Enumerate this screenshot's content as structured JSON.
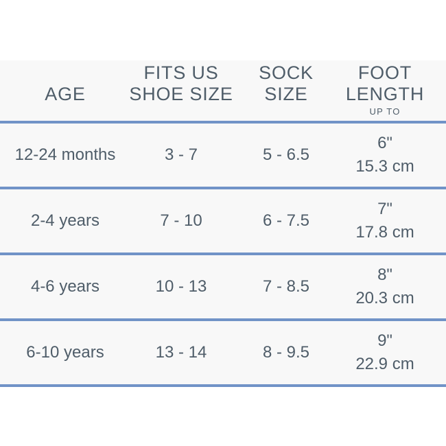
{
  "header": {
    "age": {
      "line2": "AGE"
    },
    "shoe": {
      "line1": "FITS US",
      "line2": "SHOE SIZE"
    },
    "sock": {
      "line1": "SOCK",
      "line2": "SIZE"
    },
    "foot": {
      "line1": "FOOT",
      "line2": "LENGTH",
      "sub": "UP TO"
    }
  },
  "rows": [
    {
      "age": "12-24 months",
      "shoe": "3 - 7",
      "sock": "5 - 6.5",
      "foot_in": "6\"",
      "foot_cm": "15.3 cm"
    },
    {
      "age": "2-4 years",
      "shoe": "7 - 10",
      "sock": "6 - 7.5",
      "foot_in": "7\"",
      "foot_cm": "17.8 cm"
    },
    {
      "age": "4-6 years",
      "shoe": "10 - 13",
      "sock": "7 - 8.5",
      "foot_in": "8\"",
      "foot_cm": "20.3 cm"
    },
    {
      "age": "6-10 years",
      "shoe": "13 - 14",
      "sock": "8 - 9.5",
      "foot_in": "9\"",
      "foot_cm": "22.9 cm"
    }
  ],
  "colors": {
    "text": "#4f5d69",
    "rule_blue": "#7193c7",
    "row_background": "#f8f8f8",
    "page_background": "#ffffff"
  }
}
